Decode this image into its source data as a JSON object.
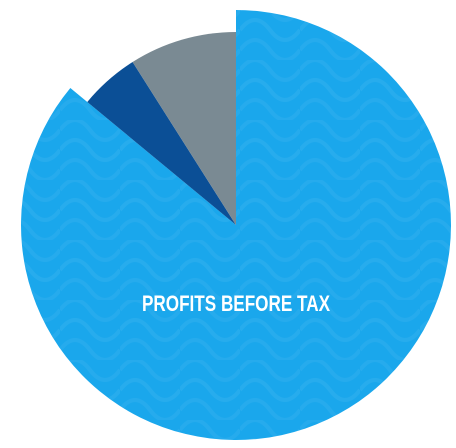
{
  "chart_data": {
    "type": "pie",
    "categories": [
      "PROFITS BEFORE TAX",
      null,
      null
    ],
    "values": [
      86,
      5,
      9
    ],
    "colors": [
      "#1aa7ec",
      "#0b4f96",
      "#7a8a93"
    ],
    "start_angle": 0,
    "direction": "clockwise"
  }
}
